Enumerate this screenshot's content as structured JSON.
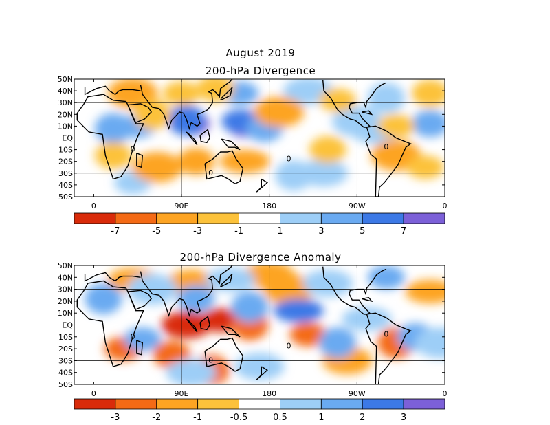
{
  "figure": {
    "title": "August 2019"
  },
  "panels": [
    {
      "title": "200-hPa Divergence",
      "lat_labels": [
        "50N",
        "40N",
        "30N",
        "20N",
        "10N",
        "EQ",
        "10S",
        "20S",
        "30S",
        "40S",
        "50S"
      ],
      "lon_labels": [
        "0",
        "90E",
        "180",
        "90W",
        "0"
      ],
      "colorbar": {
        "colors": [
          "#d92b0a",
          "#f46a15",
          "#fda423",
          "#fcc23b",
          "#ffffff",
          "#9dcef7",
          "#6aaaf1",
          "#3c79e6",
          "#7c60d8"
        ],
        "tick_labels": [
          "-7",
          "-5",
          "-3",
          "-1",
          "1",
          "3",
          "5",
          "7"
        ]
      },
      "contour_label": "0"
    },
    {
      "title": "200-hPa Divergence Anomaly",
      "lat_labels": [
        "50N",
        "40N",
        "30N",
        "20N",
        "10N",
        "EQ",
        "10S",
        "20S",
        "30S",
        "40S",
        "50S"
      ],
      "lon_labels": [
        "0",
        "90E",
        "180",
        "90W",
        "0"
      ],
      "colorbar": {
        "colors": [
          "#d92b0a",
          "#f46a15",
          "#fda423",
          "#fcc23b",
          "#ffffff",
          "#9dcef7",
          "#6aaaf1",
          "#3c79e6",
          "#7c60d8"
        ],
        "tick_labels": [
          "-3",
          "-2",
          "-1",
          "-0.5",
          "0.5",
          "1",
          "2",
          "3"
        ]
      },
      "contour_label": "0"
    }
  ],
  "chart_data": [
    {
      "type": "heatmap",
      "title": "August 2019",
      "subtitle": "200-hPa Divergence",
      "x_range": [
        -20,
        360
      ],
      "x_ticks": [
        0,
        90,
        180,
        270,
        360
      ],
      "y_range": [
        -50,
        50
      ],
      "y_ticks": [
        50,
        40,
        30,
        20,
        10,
        0,
        -10,
        -20,
        -30,
        -40,
        -50
      ],
      "color_levels": [
        -7,
        -5,
        -3,
        -1,
        1,
        3,
        5,
        7
      ],
      "cells": [
        {
          "lon": 100,
          "lat": 12,
          "v": 8
        },
        {
          "lon": 155,
          "lat": 12,
          "v": 8
        },
        {
          "lon": 95,
          "lat": 15,
          "v": 6
        },
        {
          "lon": 150,
          "lat": 14,
          "v": 6
        },
        {
          "lon": 175,
          "lat": 8,
          "v": 4
        },
        {
          "lon": 20,
          "lat": 8,
          "v": 4
        },
        {
          "lon": 45,
          "lat": 10,
          "v": 4
        },
        {
          "lon": 345,
          "lat": 12,
          "v": 4
        },
        {
          "lon": 270,
          "lat": 14,
          "v": 3
        },
        {
          "lon": 150,
          "lat": 38,
          "v": 4
        },
        {
          "lon": 220,
          "lat": 40,
          "v": 3
        },
        {
          "lon": 300,
          "lat": 34,
          "v": 2
        },
        {
          "lon": 290,
          "lat": 5,
          "v": 3
        },
        {
          "lon": 235,
          "lat": -30,
          "v": 3
        },
        {
          "lon": 205,
          "lat": -32,
          "v": 2
        },
        {
          "lon": 40,
          "lat": -38,
          "v": 2
        },
        {
          "lon": 105,
          "lat": -20,
          "v": -4
        },
        {
          "lon": 65,
          "lat": -25,
          "v": -3
        },
        {
          "lon": 155,
          "lat": -20,
          "v": -3
        },
        {
          "lon": 240,
          "lat": -10,
          "v": -2
        },
        {
          "lon": 310,
          "lat": -15,
          "v": -3
        },
        {
          "lon": 340,
          "lat": -25,
          "v": -2
        },
        {
          "lon": 20,
          "lat": -15,
          "v": -2
        },
        {
          "lon": 40,
          "lat": 38,
          "v": -3
        },
        {
          "lon": 90,
          "lat": 38,
          "v": -2
        },
        {
          "lon": 125,
          "lat": 42,
          "v": -2
        },
        {
          "lon": 190,
          "lat": 22,
          "v": -3
        },
        {
          "lon": 250,
          "lat": 32,
          "v": -2
        },
        {
          "lon": 345,
          "lat": 38,
          "v": -2
        },
        {
          "lon": 60,
          "lat": 20,
          "v": -2
        },
        {
          "lon": 310,
          "lat": 10,
          "v": -2
        }
      ]
    },
    {
      "type": "heatmap",
      "title": "August 2019",
      "subtitle": "200-hPa Divergence Anomaly",
      "x_range": [
        -20,
        360
      ],
      "x_ticks": [
        0,
        90,
        180,
        270,
        360
      ],
      "y_range": [
        -50,
        50
      ],
      "y_ticks": [
        50,
        40,
        30,
        20,
        10,
        0,
        -10,
        -20,
        -30,
        -40,
        -50
      ],
      "color_levels": [
        -3,
        -2,
        -1,
        -0.5,
        0.5,
        1,
        2,
        3
      ],
      "cells": [
        {
          "lon": 130,
          "lat": 4,
          "v": -4
        },
        {
          "lon": 95,
          "lat": 0,
          "v": -3
        },
        {
          "lon": 160,
          "lat": 0,
          "v": -2
        },
        {
          "lon": 30,
          "lat": -20,
          "v": -2
        },
        {
          "lon": 80,
          "lat": -25,
          "v": -2
        },
        {
          "lon": 120,
          "lat": -38,
          "v": -2
        },
        {
          "lon": 220,
          "lat": -8,
          "v": -2
        },
        {
          "lon": 260,
          "lat": -30,
          "v": -1
        },
        {
          "lon": 310,
          "lat": -15,
          "v": -2
        },
        {
          "lon": 40,
          "lat": 38,
          "v": -1
        },
        {
          "lon": 100,
          "lat": 35,
          "v": -1
        },
        {
          "lon": 200,
          "lat": 30,
          "v": -1
        },
        {
          "lon": 345,
          "lat": 28,
          "v": -1
        },
        {
          "lon": 180,
          "lat": 42,
          "v": -1
        },
        {
          "lon": 160,
          "lat": 15,
          "v": 2
        },
        {
          "lon": 210,
          "lat": 12,
          "v": 3
        },
        {
          "lon": 105,
          "lat": 22,
          "v": 2
        },
        {
          "lon": 10,
          "lat": 22,
          "v": 2
        },
        {
          "lon": 50,
          "lat": -12,
          "v": 2
        },
        {
          "lon": 170,
          "lat": -35,
          "v": 1
        },
        {
          "lon": 250,
          "lat": -15,
          "v": 2
        },
        {
          "lon": 300,
          "lat": 40,
          "v": 2
        },
        {
          "lon": 330,
          "lat": -10,
          "v": 2
        },
        {
          "lon": 355,
          "lat": -15,
          "v": 1
        },
        {
          "lon": 140,
          "lat": 38,
          "v": 1
        },
        {
          "lon": 240,
          "lat": 35,
          "v": 1
        },
        {
          "lon": 60,
          "lat": 30,
          "v": 1
        },
        {
          "lon": 280,
          "lat": 5,
          "v": 1
        },
        {
          "lon": 100,
          "lat": -40,
          "v": 1
        }
      ]
    }
  ]
}
